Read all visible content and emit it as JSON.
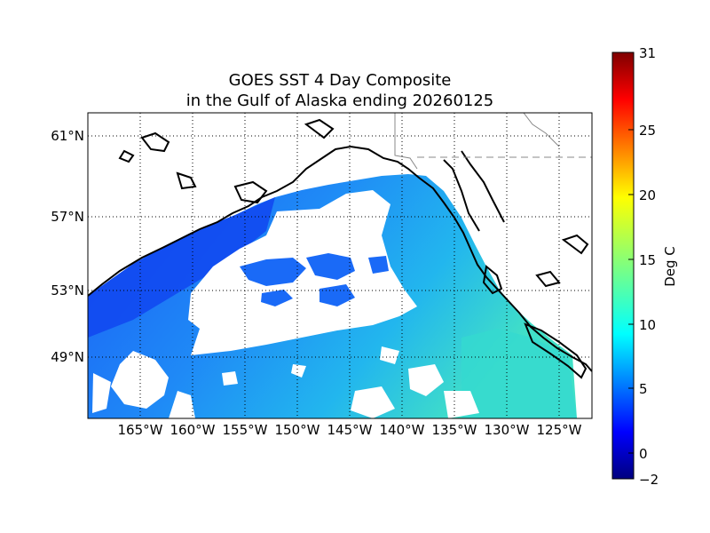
{
  "title": {
    "line1": "GOES SST 4 Day Composite",
    "line2": "in the Gulf of Alaska ending 20260125"
  },
  "map": {
    "x_ticks": [
      "165°W",
      "160°W",
      "155°W",
      "150°W",
      "145°W",
      "140°W",
      "135°W",
      "130°W",
      "125°W"
    ],
    "y_ticks": [
      "61°N",
      "57°N",
      "53°N",
      "49°N"
    ],
    "grid": "dotted",
    "features": [
      "sst-field",
      "cloud-mask",
      "coastline",
      "national-border"
    ]
  },
  "colorbar": {
    "label": "Deg C",
    "min": -2,
    "max": 31,
    "ticks": [
      "31",
      "25",
      "20",
      "15",
      "10",
      "5",
      "0",
      "−2"
    ],
    "colormap": "jet",
    "colors": [
      "#00007f",
      "#0000ff",
      "#007fff",
      "#00ffff",
      "#7fff7f",
      "#ffff00",
      "#ff7f00",
      "#ff0000",
      "#7f0000"
    ]
  }
}
